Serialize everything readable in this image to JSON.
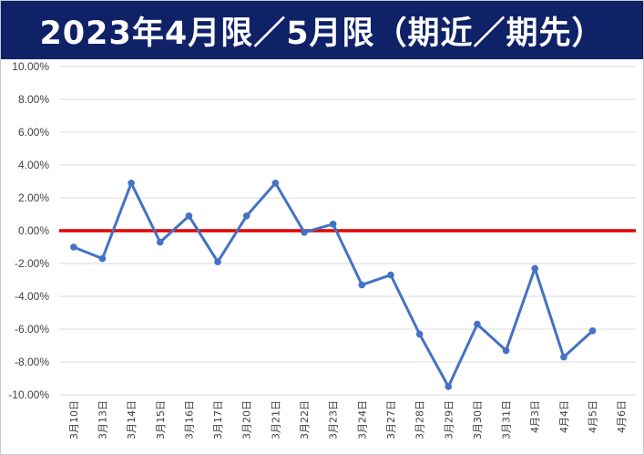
{
  "chart_data": {
    "type": "line",
    "title": "2023年4月限／5月限（期近／期先）",
    "xlabel": "",
    "ylabel": "",
    "ylim": [
      -0.1,
      0.1
    ],
    "y_tick_step": 0.02,
    "grid": true,
    "legend": "none",
    "categories": [
      "3月10日",
      "3月13日",
      "3月14日",
      "3月15日",
      "3月16日",
      "3月17日",
      "3月20日",
      "3月21日",
      "3月22日",
      "3月23日",
      "3月24日",
      "3月27日",
      "3月28日",
      "3月29日",
      "3月30日",
      "3月31日",
      "4月3日",
      "4月4日",
      "4月5日",
      "4月6日"
    ],
    "y_tick_labels": [
      "10.00%",
      "8.00%",
      "6.00%",
      "4.00%",
      "2.00%",
      "0.00%",
      "-2.00%",
      "-4.00%",
      "-6.00%",
      "-8.00%",
      "-10.00%"
    ],
    "series": [
      {
        "values": [
          -0.01,
          -0.017,
          0.029,
          -0.007,
          0.009,
          -0.019,
          0.009,
          0.029,
          -0.001,
          0.004,
          -0.033,
          -0.027,
          -0.063,
          -0.095,
          -0.057,
          -0.073,
          -0.023,
          -0.077,
          -0.061,
          null
        ],
        "color": "#4472c4"
      }
    ],
    "reference_line": {
      "y": 0.0,
      "color": "#e00000"
    },
    "banner_color": "#0f2167"
  }
}
